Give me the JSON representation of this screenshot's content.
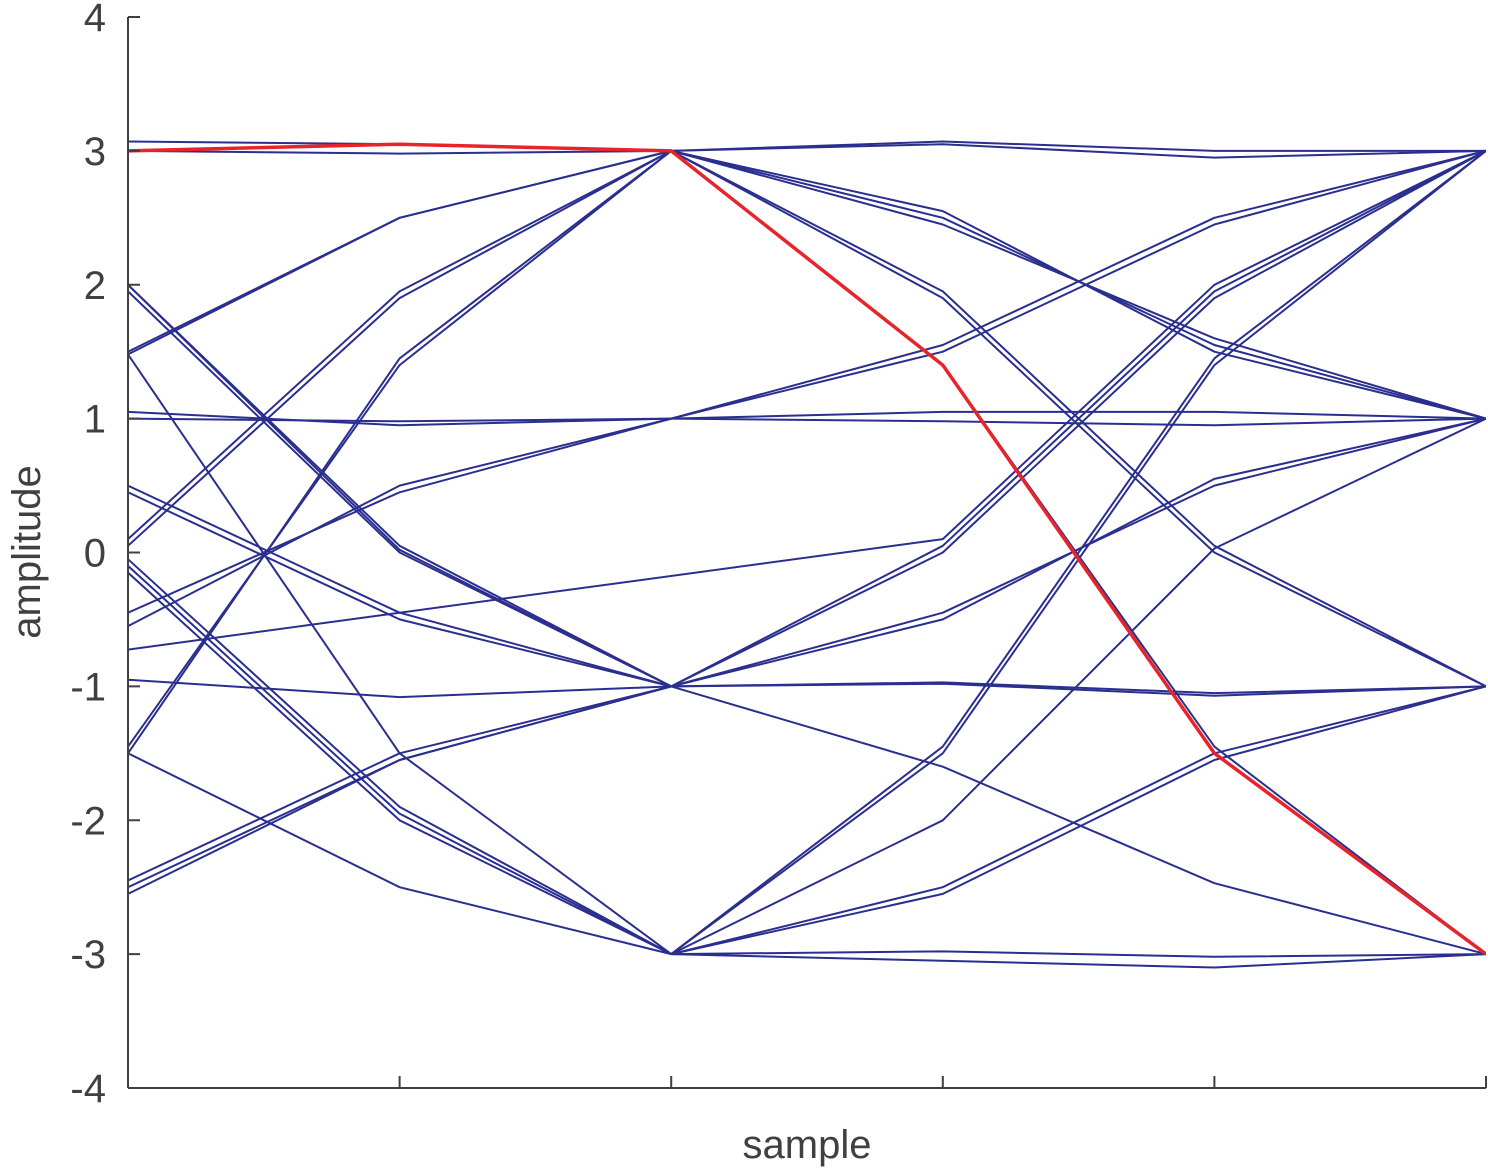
{
  "chart_data": {
    "type": "line",
    "title": "",
    "xlabel": "sample",
    "ylabel": "amplitude",
    "ylim": [
      -4,
      4
    ],
    "yticks": [
      -4,
      -3,
      -2,
      -1,
      0,
      1,
      2,
      3,
      4
    ],
    "ytick_labels": [
      "-4",
      "-3",
      "-2",
      "-1",
      "0",
      "1",
      "2",
      "3",
      "4"
    ],
    "xticks": [
      0,
      1,
      2,
      3,
      4,
      5
    ],
    "xlim": [
      0,
      5
    ],
    "grid": false,
    "colors": {
      "series": "#2a2f8f",
      "highlight": "#e8242b",
      "axis": "#404040"
    },
    "series": [
      {
        "x": [
          0,
          1,
          2
        ],
        "y": [
          3.07,
          3.05,
          3.0
        ]
      },
      {
        "x": [
          0,
          1,
          2
        ],
        "y": [
          3.0,
          2.98,
          3.0
        ]
      },
      {
        "x": [
          0,
          1,
          2
        ],
        "y": [
          1.5,
          2.5,
          3.0
        ]
      },
      {
        "x": [
          0,
          1,
          2
        ],
        "y": [
          0.05,
          1.9,
          3.0
        ]
      },
      {
        "x": [
          0,
          1,
          2
        ],
        "y": [
          0.1,
          1.95,
          3.0
        ]
      },
      {
        "x": [
          0,
          1,
          2
        ],
        "y": [
          -1.45,
          1.4,
          3.0
        ]
      },
      {
        "x": [
          0,
          1,
          2
        ],
        "y": [
          -1.5,
          1.45,
          3.0
        ]
      },
      {
        "x": [
          0,
          1,
          2
        ],
        "y": [
          1.48,
          2.5,
          3.0
        ]
      },
      {
        "x": [
          0,
          1,
          2
        ],
        "y": [
          1.05,
          0.95,
          1.0
        ]
      },
      {
        "x": [
          0,
          1,
          2
        ],
        "y": [
          1.0,
          0.98,
          1.0
        ]
      },
      {
        "x": [
          0,
          1,
          2
        ],
        "y": [
          -0.45,
          0.45,
          1.0
        ]
      },
      {
        "x": [
          0,
          1,
          2
        ],
        "y": [
          -0.55,
          0.5,
          1.0
        ]
      },
      {
        "x": [
          0,
          1,
          2
        ],
        "y": [
          -2.45,
          -1.5,
          -1.0
        ]
      },
      {
        "x": [
          0,
          1,
          2
        ],
        "y": [
          -2.55,
          -1.55,
          -1.0
        ]
      },
      {
        "x": [
          0,
          1,
          2
        ],
        "y": [
          0.5,
          -0.45,
          -1.0
        ]
      },
      {
        "x": [
          0,
          1,
          2
        ],
        "y": [
          0.45,
          -0.5,
          -1.0
        ]
      },
      {
        "x": [
          0,
          1,
          2
        ],
        "y": [
          2.0,
          0.05,
          -1.0
        ]
      },
      {
        "x": [
          0,
          1,
          2
        ],
        "y": [
          1.95,
          0.0,
          -1.0
        ]
      },
      {
        "x": [
          0,
          1,
          2
        ],
        "y": [
          -0.95,
          -1.08,
          -1.0
        ]
      },
      {
        "x": [
          0,
          1,
          2
        ],
        "y": [
          -0.05,
          -1.9,
          -3.0
        ]
      },
      {
        "x": [
          0,
          1,
          2
        ],
        "y": [
          -0.1,
          -1.95,
          -3.0
        ]
      },
      {
        "x": [
          0,
          1,
          2
        ],
        "y": [
          -0.15,
          -2.0,
          -3.0
        ]
      },
      {
        "x": [
          0,
          1,
          2
        ],
        "y": [
          1.48,
          -1.5,
          -3.0
        ]
      },
      {
        "x": [
          0,
          1,
          2
        ],
        "y": [
          -1.5,
          -2.5,
          -3.0
        ]
      },
      {
        "x": [
          0,
          1,
          2
        ],
        "y": [
          2.0,
          0.02,
          -1.0
        ]
      },
      {
        "x": [
          0,
          1,
          2
        ],
        "y": [
          -2.5,
          -1.55,
          -1.0
        ]
      },
      {
        "x": [
          2,
          3,
          4,
          5
        ],
        "y": [
          3.0,
          3.07,
          3.0,
          3.0
        ]
      },
      {
        "x": [
          2,
          3,
          4,
          5
        ],
        "y": [
          3.0,
          3.05,
          2.95,
          3.0
        ]
      },
      {
        "x": [
          2,
          3,
          4,
          5
        ],
        "y": [
          3.0,
          2.55,
          1.5,
          1.0
        ]
      },
      {
        "x": [
          2,
          3,
          4,
          5
        ],
        "y": [
          3.0,
          2.5,
          1.55,
          1.0
        ]
      },
      {
        "x": [
          2,
          3,
          4,
          5
        ],
        "y": [
          3.0,
          2.45,
          1.6,
          1.0
        ]
      },
      {
        "x": [
          2,
          3,
          4,
          5
        ],
        "y": [
          3.0,
          1.95,
          0.05,
          -1.0
        ]
      },
      {
        "x": [
          2,
          3,
          4,
          5
        ],
        "y": [
          3.0,
          1.9,
          0.0,
          -1.0
        ]
      },
      {
        "x": [
          2,
          3,
          4,
          5
        ],
        "y": [
          1.0,
          1.05,
          1.05,
          1.0
        ]
      },
      {
        "x": [
          2,
          3,
          4,
          5
        ],
        "y": [
          1.0,
          0.98,
          0.95,
          1.0
        ]
      },
      {
        "x": [
          2,
          3,
          4,
          5
        ],
        "y": [
          1.0,
          1.5,
          2.45,
          3.0
        ]
      },
      {
        "x": [
          2,
          3,
          4,
          5
        ],
        "y": [
          1.0,
          1.55,
          2.5,
          3.0
        ]
      },
      {
        "x": [
          -1,
          3,
          4,
          5
        ],
        "y": [
          -1.0,
          0.1,
          2.0,
          3.0
        ]
      },
      {
        "x": [
          2,
          3,
          4,
          5
        ],
        "y": [
          -1.0,
          0.05,
          1.95,
          3.0
        ]
      },
      {
        "x": [
          2,
          3,
          4,
          5
        ],
        "y": [
          -1.0,
          0.0,
          1.9,
          3.0
        ]
      },
      {
        "x": [
          2,
          3,
          4,
          5
        ],
        "y": [
          -1.0,
          -0.45,
          0.5,
          1.0
        ]
      },
      {
        "x": [
          2,
          3,
          4,
          5
        ],
        "y": [
          -1.0,
          -0.5,
          0.55,
          1.0
        ]
      },
      {
        "x": [
          2,
          3,
          4,
          5
        ],
        "y": [
          -1.0,
          -0.97,
          -1.05,
          -1.0
        ]
      },
      {
        "x": [
          2,
          3,
          4,
          5
        ],
        "y": [
          -1.0,
          -0.98,
          -1.07,
          -1.0
        ]
      },
      {
        "x": [
          2,
          3,
          4,
          5
        ],
        "y": [
          -1.0,
          -1.6,
          -2.47,
          -3.0
        ]
      },
      {
        "x": [
          2,
          3,
          4,
          5
        ],
        "y": [
          -3.0,
          -1.5,
          1.4,
          3.0
        ]
      },
      {
        "x": [
          2,
          3,
          4,
          5
        ],
        "y": [
          -3.0,
          -1.45,
          1.45,
          3.0
        ]
      },
      {
        "x": [
          2,
          3,
          4,
          5
        ],
        "y": [
          -3.0,
          -2.0,
          0.03,
          1.0
        ]
      },
      {
        "x": [
          2,
          3,
          4,
          5
        ],
        "y": [
          -3.0,
          -2.5,
          -1.5,
          -1.0
        ]
      },
      {
        "x": [
          2,
          3,
          4,
          5
        ],
        "y": [
          -3.0,
          -2.55,
          -1.55,
          -1.0
        ]
      },
      {
        "x": [
          2,
          3,
          4,
          5
        ],
        "y": [
          -3.0,
          -2.98,
          -3.02,
          -3.0
        ]
      },
      {
        "x": [
          2,
          3,
          4,
          5
        ],
        "y": [
          -3.0,
          -3.05,
          -3.1,
          -3.0
        ]
      },
      {
        "x": [
          2,
          3,
          4,
          5
        ],
        "y": [
          3.0,
          1.4,
          -1.45,
          -3.0
        ]
      }
    ],
    "highlight": {
      "x": [
        0,
        1,
        2,
        3,
        4,
        5
      ],
      "y": [
        3.0,
        3.05,
        3.0,
        1.4,
        -1.5,
        -3.0
      ]
    }
  }
}
